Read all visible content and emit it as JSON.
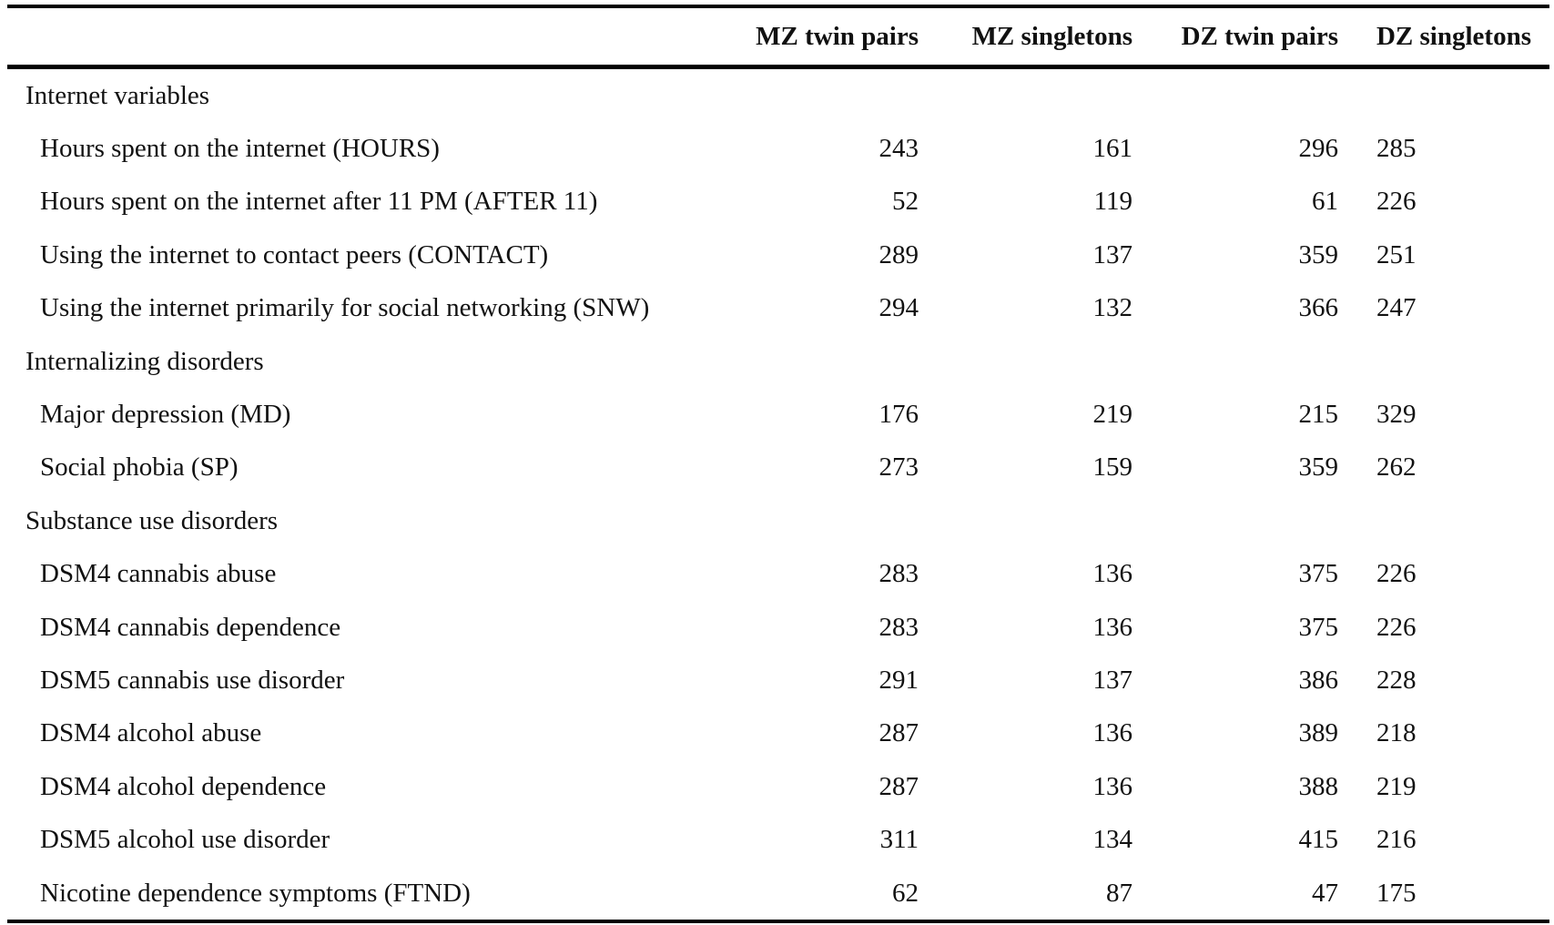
{
  "table": {
    "headers": [
      "",
      "MZ twin pairs",
      "MZ singletons",
      "DZ twin pairs",
      "DZ singletons"
    ],
    "rows": [
      {
        "type": "group",
        "label": "Internet variables"
      },
      {
        "type": "item",
        "label": "Hours spent on the internet (HOURS)",
        "values": [
          "243",
          "161",
          "296",
          "285"
        ]
      },
      {
        "type": "item",
        "label": "Hours spent on the internet after 11 PM (AFTER 11)",
        "values": [
          "52",
          "119",
          "61",
          "226"
        ]
      },
      {
        "type": "item",
        "label": "Using the internet to contact peers (CONTACT)",
        "values": [
          "289",
          "137",
          "359",
          "251"
        ]
      },
      {
        "type": "item",
        "label": "Using the internet primarily for social networking (SNW)",
        "values": [
          "294",
          "132",
          "366",
          "247"
        ]
      },
      {
        "type": "group",
        "label": "Internalizing disorders"
      },
      {
        "type": "item",
        "label": "Major depression (MD)",
        "values": [
          "176",
          "219",
          "215",
          "329"
        ]
      },
      {
        "type": "item",
        "label": "Social phobia (SP)",
        "values": [
          "273",
          "159",
          "359",
          "262"
        ]
      },
      {
        "type": "group",
        "label": "Substance use disorders"
      },
      {
        "type": "item",
        "label": "DSM4 cannabis abuse",
        "values": [
          "283",
          "136",
          "375",
          "226"
        ]
      },
      {
        "type": "item",
        "label": "DSM4 cannabis dependence",
        "values": [
          "283",
          "136",
          "375",
          "226"
        ]
      },
      {
        "type": "item",
        "label": "DSM5 cannabis use disorder",
        "values": [
          "291",
          "137",
          "386",
          "228"
        ]
      },
      {
        "type": "item",
        "label": "DSM4 alcohol abuse",
        "values": [
          "287",
          "136",
          "389",
          "218"
        ]
      },
      {
        "type": "item",
        "label": "DSM4 alcohol dependence",
        "values": [
          "287",
          "136",
          "388",
          "219"
        ]
      },
      {
        "type": "item",
        "label": "DSM5 alcohol use disorder",
        "values": [
          "311",
          "134",
          "415",
          "216"
        ]
      },
      {
        "type": "item",
        "label": "Nicotine dependence symptoms (FTND)",
        "values": [
          "62",
          "87",
          "47",
          "175"
        ]
      }
    ]
  }
}
